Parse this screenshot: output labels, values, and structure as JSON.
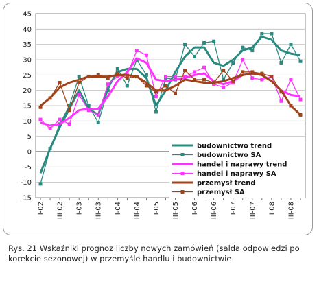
{
  "caption": "Rys. 21 Wskaźniki prognoz liczby nowych zamówień (salda odpowiedzi po korekcie sezonowej) w przemyśle handlu i budownictwie",
  "chart_data": {
    "type": "line",
    "title": "",
    "xlabel": "",
    "ylabel": "",
    "ylim": [
      -15,
      45
    ],
    "yticks": [
      -15,
      -10,
      -5,
      0,
      5,
      10,
      15,
      20,
      25,
      30,
      35,
      40,
      45
    ],
    "grid": true,
    "legend_position": "bottom-right",
    "categories": [
      "I-02",
      "II-02",
      "III-02",
      "IV-02",
      "I-03",
      "II-03",
      "III-03",
      "IV-03",
      "I-04",
      "II-04",
      "III-04",
      "IV-04",
      "I-05",
      "II-05",
      "III-05",
      "IV-05",
      "I-06",
      "II-06",
      "III-06",
      "IV-06",
      "I-07",
      "II-07",
      "III-07",
      "IV-07",
      "I-08",
      "II-08",
      "III-08",
      "IV-08"
    ],
    "x_tick_labels": [
      "I-02",
      "III-02",
      "I-03",
      "III-03",
      "I-04",
      "III-04",
      "I-05",
      "III-05",
      "I-06",
      "III-06",
      "I-07",
      "III-07",
      "I-08",
      "III-08"
    ],
    "series": [
      {
        "name": "budownictwo trend",
        "color": "#2a8a80",
        "style": "line",
        "values": [
          -7,
          1,
          8,
          14,
          20,
          14,
          12,
          21,
          26,
          27,
          27,
          24,
          15,
          20,
          26,
          31,
          34,
          34,
          29,
          28,
          30,
          33,
          34,
          37.5,
          36.5,
          33,
          32,
          31.5
        ]
      },
      {
        "name": "budownictwo SA",
        "color": "#2a8a80",
        "style": "markers",
        "values": [
          -10.5,
          1,
          9,
          15,
          24.5,
          15,
          9.5,
          20,
          27,
          21.5,
          30,
          25,
          13,
          24,
          23.5,
          35,
          31,
          35.5,
          36,
          23.5,
          29,
          34,
          33,
          38.5,
          38.5,
          29,
          35,
          29.5
        ]
      },
      {
        "name": "handel i naprawy trend",
        "color": "#ff33ff",
        "style": "line",
        "values": [
          9.5,
          8.5,
          9,
          11,
          13.5,
          14,
          14,
          18,
          23,
          26,
          30.5,
          29,
          23.5,
          23,
          23.5,
          24,
          25,
          25.5,
          23,
          22,
          23,
          25,
          25.5,
          25,
          23,
          20,
          18.5,
          18
        ]
      },
      {
        "name": "handel i naprawy SA",
        "color": "#ff33ff",
        "style": "markers",
        "values": [
          10.5,
          7.5,
          10.5,
          9,
          18.5,
          13.5,
          12,
          22,
          24.5,
          25,
          33,
          31.5,
          18,
          24.5,
          24.5,
          24.5,
          26,
          27.5,
          22,
          21,
          22.5,
          30,
          24,
          23.5,
          24.5,
          16.5,
          23.5,
          17
        ]
      },
      {
        "name": "przemysł trend",
        "color": "#a0421a",
        "style": "line",
        "values": [
          15,
          17.5,
          21,
          22.5,
          23.5,
          24.5,
          24.5,
          24.5,
          25,
          25,
          24.5,
          22.5,
          20,
          20,
          21.5,
          23.5,
          23,
          22.5,
          22.5,
          23,
          24,
          25,
          25.5,
          25,
          23,
          20,
          15,
          12
        ]
      },
      {
        "name": "przemysł SA",
        "color": "#a0421a",
        "style": "markers",
        "values": [
          14.5,
          17.5,
          22.5,
          13.5,
          22.5,
          24.5,
          25,
          24,
          25.5,
          24,
          24.5,
          21.5,
          19.5,
          21.5,
          19,
          26.5,
          23.5,
          23.5,
          22.5,
          26.5,
          23,
          26,
          26,
          25.5,
          24.5,
          19.5,
          15,
          12
        ]
      }
    ],
    "legend": [
      {
        "label": "budownictwo trend",
        "color": "#2a8a80",
        "type": "line"
      },
      {
        "label": "budownictwo SA",
        "color": "#2a8a80",
        "type": "marker"
      },
      {
        "label": "handel i naprawy trend",
        "color": "#ff33ff",
        "type": "line"
      },
      {
        "label": "handel i naprawy SA",
        "color": "#ff33ff",
        "type": "marker"
      },
      {
        "label": "przemysł trend",
        "color": "#a0421a",
        "type": "line"
      },
      {
        "label": "przemysł SA",
        "color": "#a0421a",
        "type": "marker"
      }
    ]
  }
}
